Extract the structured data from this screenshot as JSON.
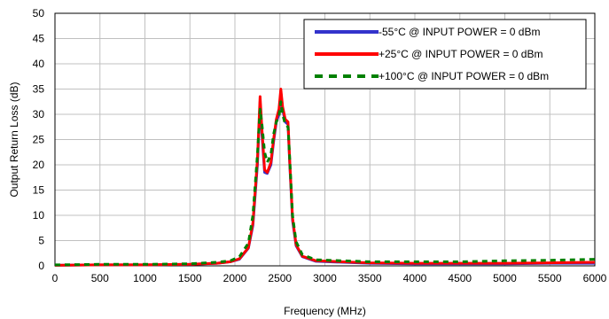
{
  "chart_data": {
    "type": "line",
    "title": "",
    "xlabel": "Frequency (MHz)",
    "ylabel": "Output Return  Loss (dB)",
    "xlim": [
      0,
      6000
    ],
    "ylim": [
      0,
      50
    ],
    "xticks": [
      0,
      500,
      1000,
      1500,
      2000,
      2500,
      3000,
      3500,
      4000,
      4500,
      5000,
      5500,
      6000
    ],
    "yticks": [
      0,
      5,
      10,
      15,
      20,
      25,
      30,
      35,
      40,
      45,
      50
    ],
    "grid": true,
    "legend_position": "top-right",
    "series": [
      {
        "name": "-55°C @ INPUT POWER = 0 dBm",
        "color": "#3333cc",
        "style": "solid",
        "x": [
          0,
          500,
          1000,
          1500,
          1800,
          1950,
          2050,
          2150,
          2200,
          2250,
          2280,
          2300,
          2330,
          2360,
          2400,
          2430,
          2460,
          2490,
          2510,
          2530,
          2560,
          2590,
          2610,
          2640,
          2680,
          2750,
          2900,
          3500,
          4000,
          4500,
          5000,
          5500,
          6000
        ],
        "y": [
          0.1,
          0.2,
          0.2,
          0.3,
          0.5,
          0.8,
          1.3,
          3.5,
          8.0,
          20.0,
          32.5,
          26.0,
          18.5,
          18.3,
          20.0,
          24.5,
          28.5,
          30.0,
          34.5,
          31.0,
          28.5,
          28.0,
          20.0,
          9.0,
          4.0,
          1.8,
          0.9,
          0.5,
          0.4,
          0.4,
          0.4,
          0.5,
          0.5
        ]
      },
      {
        "name": "+25°C @ INPUT POWER = 0 dBm",
        "color": "#ff0000",
        "style": "solid",
        "x": [
          0,
          500,
          1000,
          1500,
          1800,
          1950,
          2050,
          2150,
          2200,
          2250,
          2280,
          2300,
          2330,
          2360,
          2400,
          2430,
          2460,
          2490,
          2510,
          2530,
          2560,
          2590,
          2610,
          2640,
          2680,
          2750,
          2900,
          3500,
          4000,
          4500,
          5000,
          5500,
          6000
        ],
        "y": [
          0.1,
          0.2,
          0.2,
          0.3,
          0.5,
          0.8,
          1.4,
          3.6,
          8.5,
          21.0,
          33.5,
          27.0,
          19.0,
          18.5,
          20.5,
          25.0,
          29.0,
          31.0,
          35.0,
          31.5,
          29.0,
          28.5,
          20.5,
          9.5,
          4.2,
          1.9,
          1.0,
          0.6,
          0.5,
          0.5,
          0.5,
          0.6,
          0.7
        ]
      },
      {
        "name": "+100°C @ INPUT POWER = 0 dBm",
        "color": "#008000",
        "style": "dashed",
        "x": [
          0,
          500,
          1000,
          1500,
          1800,
          1950,
          2050,
          2150,
          2200,
          2250,
          2280,
          2300,
          2330,
          2360,
          2400,
          2430,
          2460,
          2490,
          2510,
          2530,
          2560,
          2590,
          2610,
          2640,
          2680,
          2750,
          2900,
          3500,
          4000,
          4500,
          5000,
          5500,
          6000
        ],
        "y": [
          0.2,
          0.3,
          0.3,
          0.4,
          0.7,
          1.0,
          1.8,
          4.5,
          10.0,
          22.0,
          31.0,
          28.0,
          22.5,
          20.5,
          22.0,
          26.0,
          28.5,
          29.5,
          32.5,
          30.0,
          28.0,
          27.5,
          21.0,
          10.0,
          4.8,
          2.2,
          1.2,
          0.8,
          0.8,
          0.8,
          1.0,
          1.1,
          1.3
        ]
      }
    ]
  }
}
